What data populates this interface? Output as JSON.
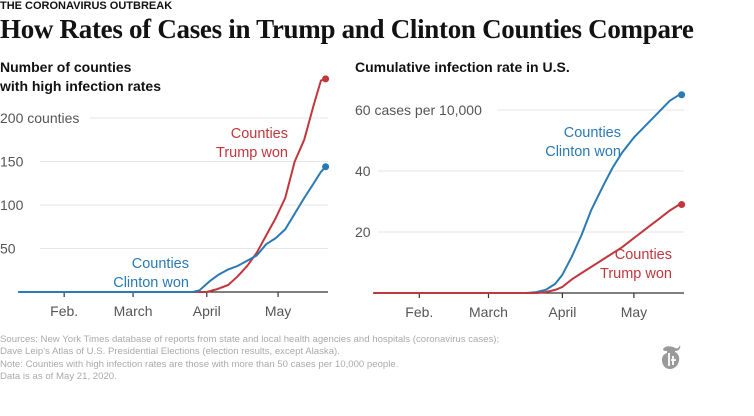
{
  "kicker": "THE CORONAVIRUS OUTBREAK",
  "headline": "How Rates of Cases in Trump and Clinton Counties Compare",
  "colors": {
    "trump": "#c0373d",
    "clinton": "#2a7ab5",
    "grid": "#e6e6e6",
    "axis": "#333333"
  },
  "notes": [
    "Sources: New York Times database of reports from state and local health agencies and hospitals (coronavirus cases);",
    "Dave Leip's Atlas of U.S. Presidential Elections (election results, except Alaska).",
    "Note: Counties with high infection rates are those with more than 50 cases per 10,000 people.",
    "Data is as of May 21, 2020."
  ],
  "logo": "nyt-t-logo",
  "chart_data": [
    {
      "type": "line",
      "title": "Number of counties with high infection rates",
      "title_lines": [
        "Number of counties",
        "with high infection rates"
      ],
      "xlabel": "",
      "ylabel": "",
      "x_unit": "day of 2020 (Jan 1 = 0)",
      "xlim": [
        12,
        142
      ],
      "ylim": [
        0,
        245
      ],
      "grid": true,
      "y_ticks": [
        {
          "value": 50,
          "label": "50"
        },
        {
          "value": 100,
          "label": "100"
        },
        {
          "value": 150,
          "label": "150"
        },
        {
          "value": 200,
          "label": "200 counties"
        }
      ],
      "x_ticks": [
        {
          "value": 31,
          "label": "Feb."
        },
        {
          "value": 60,
          "label": "March"
        },
        {
          "value": 91,
          "label": "April"
        },
        {
          "value": 121,
          "label": "May"
        }
      ],
      "series": [
        {
          "name": "Counties Trump won",
          "label_lines": [
            "Counties",
            "Trump won"
          ],
          "color": "#c0373d",
          "x": [
            12,
            85,
            91,
            95,
            100,
            104,
            108,
            112,
            116,
            120,
            124,
            128,
            132,
            136,
            139,
            141
          ],
          "y": [
            0,
            0,
            0,
            3,
            8,
            18,
            30,
            45,
            65,
            85,
            108,
            150,
            175,
            215,
            243,
            245
          ]
        },
        {
          "name": "Counties Clinton won",
          "label_lines": [
            "Counties",
            "Clinton won"
          ],
          "color": "#2a7ab5",
          "x": [
            12,
            85,
            88,
            92,
            96,
            100,
            104,
            108,
            112,
            116,
            120,
            124,
            128,
            132,
            136,
            139,
            141
          ],
          "y": [
            0,
            0,
            2,
            12,
            20,
            26,
            30,
            36,
            42,
            55,
            62,
            72,
            90,
            108,
            125,
            138,
            144
          ]
        }
      ]
    },
    {
      "type": "line",
      "title": "Cumulative infection rate in U.S.",
      "xlabel": "",
      "ylabel": "cases per 10,000",
      "x_unit": "day of 2020 (Jan 1 = 0)",
      "xlim": [
        12,
        142
      ],
      "ylim": [
        0,
        65
      ],
      "grid": true,
      "y_ticks": [
        {
          "value": 20,
          "label": "20"
        },
        {
          "value": 40,
          "label": "40"
        },
        {
          "value": 60,
          "label": "60 cases per 10,000"
        }
      ],
      "x_ticks": [
        {
          "value": 31,
          "label": "Feb."
        },
        {
          "value": 60,
          "label": "March"
        },
        {
          "value": 91,
          "label": "April"
        },
        {
          "value": 121,
          "label": "May"
        }
      ],
      "series": [
        {
          "name": "Counties Clinton won",
          "label_lines": [
            "Counties",
            "Clinton won"
          ],
          "color": "#2a7ab5",
          "x": [
            12,
            76,
            80,
            84,
            88,
            91,
            95,
            99,
            103,
            108,
            112,
            116,
            121,
            126,
            131,
            136,
            140,
            141
          ],
          "y": [
            0,
            0,
            0.3,
            1,
            3,
            6,
            12,
            19,
            27,
            35,
            41,
            46,
            51,
            55,
            59,
            63,
            65,
            65
          ]
        },
        {
          "name": "Counties Trump won",
          "label_lines": [
            "Counties",
            "Trump won"
          ],
          "color": "#c0373d",
          "x": [
            12,
            80,
            84,
            88,
            91,
            95,
            100,
            105,
            110,
            116,
            121,
            126,
            131,
            136,
            140,
            141
          ],
          "y": [
            0,
            0,
            0.3,
            1,
            2,
            4.5,
            7,
            9.5,
            12,
            15,
            18,
            21,
            24,
            27,
            29,
            29
          ]
        }
      ]
    }
  ]
}
